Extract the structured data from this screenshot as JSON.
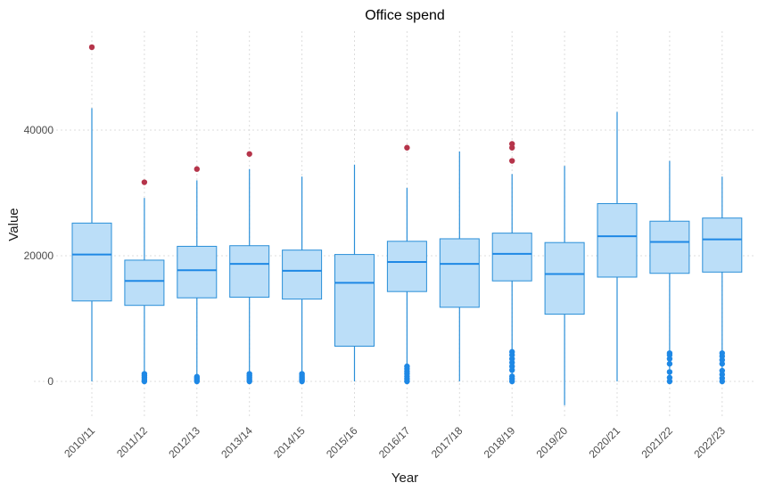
{
  "chart_data": {
    "type": "boxplot",
    "title": "Office spend",
    "xlabel": "Year",
    "ylabel": "Value",
    "ylim": [
      -5000,
      55000
    ],
    "y_ticks": [
      0,
      20000,
      40000
    ],
    "grid": true,
    "colors": {
      "box_fill": "#bbdef8",
      "box_stroke": "#2a8fd8",
      "median": "#1e88e5",
      "outlier_high": "#b5344a",
      "outlier_low": "#1e88e5"
    },
    "categories": [
      "2010/11",
      "2011/12",
      "2012/13",
      "2013/14",
      "2014/15",
      "2015/16",
      "2016/17",
      "2017/18",
      "2018/19",
      "2019/20",
      "2020/21",
      "2021/22",
      "2022/23"
    ],
    "boxes": [
      {
        "min": 0,
        "q1": 12800,
        "median": 20200,
        "q3": 25200,
        "max": 43500,
        "outliers": [
          53200
        ]
      },
      {
        "min": 0,
        "q1": 12100,
        "median": 16000,
        "q3": 19300,
        "max": 29200,
        "outliers": [
          31700,
          0,
          300,
          600,
          900,
          1200
        ]
      },
      {
        "min": 0,
        "q1": 13300,
        "median": 17700,
        "q3": 21500,
        "max": 32000,
        "outliers": [
          33800,
          0,
          250,
          500,
          750
        ]
      },
      {
        "min": 0,
        "q1": 13400,
        "median": 18700,
        "q3": 21600,
        "max": 33800,
        "outliers": [
          36200,
          0,
          300,
          600,
          900,
          1200
        ]
      },
      {
        "min": 0,
        "q1": 13100,
        "median": 17600,
        "q3": 20900,
        "max": 32600,
        "outliers": [
          0,
          200,
          400,
          600,
          800,
          1000,
          1200
        ]
      },
      {
        "min": 0,
        "q1": 5600,
        "median": 15700,
        "q3": 20200,
        "max": 34500,
        "outliers": []
      },
      {
        "min": 0,
        "q1": 14300,
        "median": 19000,
        "q3": 22300,
        "max": 30800,
        "outliers": [
          37200,
          0,
          400,
          800,
          1200,
          1600,
          2000,
          2400
        ]
      },
      {
        "min": 0,
        "q1": 11800,
        "median": 18700,
        "q3": 22700,
        "max": 36600,
        "outliers": []
      },
      {
        "min": 0,
        "q1": 16000,
        "median": 20300,
        "q3": 23600,
        "max": 33000,
        "outliers": [
          35100,
          37200,
          37800,
          0,
          400,
          800,
          1800,
          2400,
          3000,
          3600,
          4200,
          4700
        ]
      },
      {
        "min": -3800,
        "q1": 10700,
        "median": 17100,
        "q3": 22100,
        "max": 34300,
        "outliers": []
      },
      {
        "min": 0,
        "q1": 16600,
        "median": 23100,
        "q3": 28300,
        "max": 42900,
        "outliers": []
      },
      {
        "min": 0,
        "q1": 17200,
        "median": 22200,
        "q3": 25500,
        "max": 35100,
        "outliers": [
          0,
          600,
          1500,
          2800,
          3600,
          4200,
          4500
        ]
      },
      {
        "min": 0,
        "q1": 17400,
        "median": 22600,
        "q3": 26000,
        "max": 32600,
        "outliers": [
          0,
          500,
          1100,
          1700,
          2800,
          3400,
          4000,
          4500
        ]
      }
    ]
  }
}
